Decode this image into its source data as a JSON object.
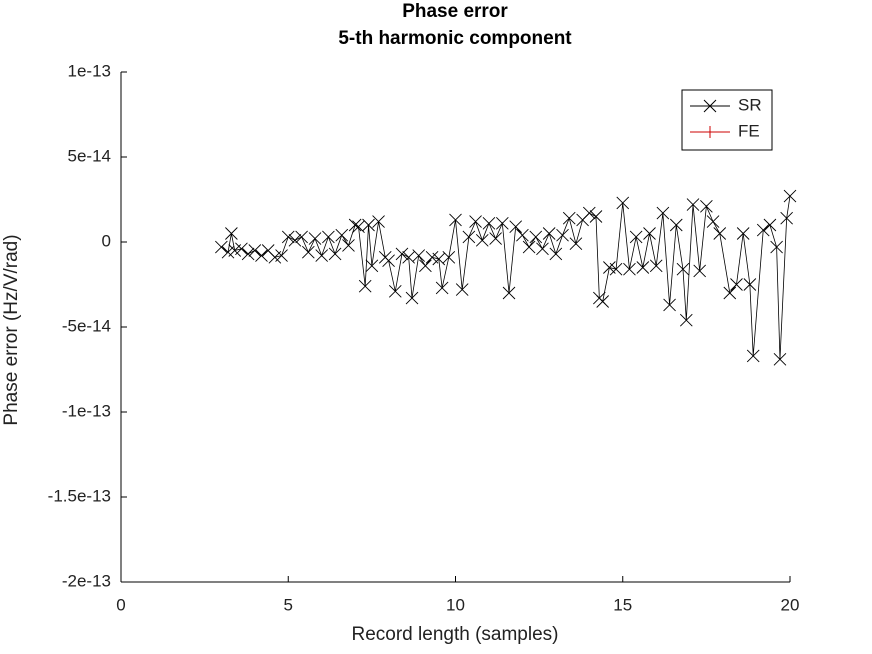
{
  "chart_data": {
    "type": "line",
    "title": "Phase error",
    "subtitle": "5-th harmonic component",
    "xlabel": "Record length (samples)",
    "ylabel": "Phase error (Hz/V/rad)",
    "x": [
      3.0,
      3.2,
      3.3,
      3.4,
      3.6,
      3.8,
      4.0,
      4.2,
      4.4,
      4.6,
      4.8,
      5.0,
      5.2,
      5.4,
      5.6,
      5.8,
      6.0,
      6.2,
      6.4,
      6.6,
      6.8,
      7.0,
      7.1,
      7.3,
      7.4,
      7.5,
      7.7,
      7.9,
      8.0,
      8.2,
      8.4,
      8.6,
      8.7,
      8.9,
      9.1,
      9.3,
      9.5,
      9.6,
      9.8,
      10.0,
      10.2,
      10.4,
      10.6,
      10.8,
      11.0,
      11.2,
      11.4,
      11.6,
      11.8,
      12.0,
      12.2,
      12.4,
      12.6,
      12.8,
      13.0,
      13.2,
      13.4,
      13.6,
      13.8,
      14.0,
      14.2,
      14.3,
      14.4,
      14.6,
      14.8,
      15.0,
      15.2,
      15.4,
      15.6,
      15.8,
      16.0,
      16.2,
      16.4,
      16.6,
      16.8,
      16.9,
      17.1,
      17.3,
      17.5,
      17.7,
      17.9,
      18.2,
      18.4,
      18.6,
      18.8,
      18.9,
      19.2,
      19.4,
      19.6,
      19.7,
      19.9,
      20.0
    ],
    "series": [
      {
        "name": "SR",
        "color": "#000000",
        "marker": "x",
        "values": [
          -3e-15,
          -6e-15,
          5e-15,
          -5e-15,
          -4e-15,
          -7e-15,
          -5e-15,
          -8e-15,
          -5e-15,
          -9e-15,
          -8e-15,
          3e-15,
          1e-15,
          3e-15,
          -6e-15,
          2e-15,
          -8e-15,
          3e-15,
          -7e-15,
          4e-15,
          -2e-15,
          1e-14,
          9e-15,
          -2.6e-14,
          1e-14,
          -1.4e-14,
          1.2e-14,
          -9e-15,
          -1.1e-14,
          -2.9e-14,
          -7e-15,
          -9e-15,
          -3.3e-14,
          -8e-15,
          -1.4e-14,
          -9e-15,
          -1e-14,
          -2.7e-14,
          -9e-15,
          1.3e-14,
          -2.8e-14,
          3e-15,
          1.2e-14,
          1e-15,
          1.1e-14,
          2e-15,
          1.1e-14,
          -3e-14,
          9e-15,
          4e-15,
          -3e-15,
          3e-15,
          -4e-15,
          5e-15,
          -7e-15,
          4e-15,
          1.4e-14,
          -1e-15,
          1.3e-14,
          1.7e-14,
          1.5e-14,
          -3.3e-14,
          -3.5e-14,
          -1.5e-14,
          -1.6e-14,
          2.3e-14,
          -1.6e-14,
          3e-15,
          -1.5e-14,
          5e-15,
          -1.4e-14,
          1.7e-14,
          -3.7e-14,
          1e-14,
          -1.6e-14,
          -4.6e-14,
          2.2e-14,
          -1.7e-14,
          2.1e-14,
          1.2e-14,
          5e-15,
          -3e-14,
          -2.5e-14,
          5e-15,
          -2.5e-14,
          -6.7e-14,
          7e-15,
          1e-14,
          -3e-15,
          -6.9e-14,
          1.4e-14,
          2.7e-14
        ]
      },
      {
        "name": "FE",
        "color": "#cc0000",
        "marker": "+",
        "values": [
          null,
          null,
          null,
          null,
          null,
          null,
          null,
          null,
          null,
          null,
          null,
          null,
          null,
          null,
          null,
          null,
          null,
          null,
          null,
          null,
          null,
          null,
          null,
          null,
          null,
          null,
          null,
          null,
          null,
          null,
          null,
          null,
          null,
          null,
          null,
          null,
          null,
          null,
          null,
          null,
          null,
          null,
          null,
          null,
          null,
          null,
          null,
          null,
          null,
          null,
          null,
          null,
          null,
          null,
          null,
          null,
          null,
          null,
          null,
          null,
          null,
          null,
          null,
          null,
          null,
          null,
          null,
          null,
          null,
          null,
          null,
          null,
          null,
          null,
          null,
          null,
          null,
          null,
          null,
          null,
          null,
          null,
          null,
          null,
          null,
          null,
          null,
          null,
          null,
          null,
          null,
          null
        ]
      }
    ],
    "xlim": [
      0,
      20
    ],
    "xticks": [
      0,
      5,
      10,
      15,
      20
    ],
    "ylim": [
      -2e-13,
      1e-13
    ],
    "yticks": [
      -2e-13,
      -1.5e-13,
      -1e-13,
      -5e-14,
      0,
      5e-14,
      1e-13
    ],
    "legend": "upper right"
  }
}
